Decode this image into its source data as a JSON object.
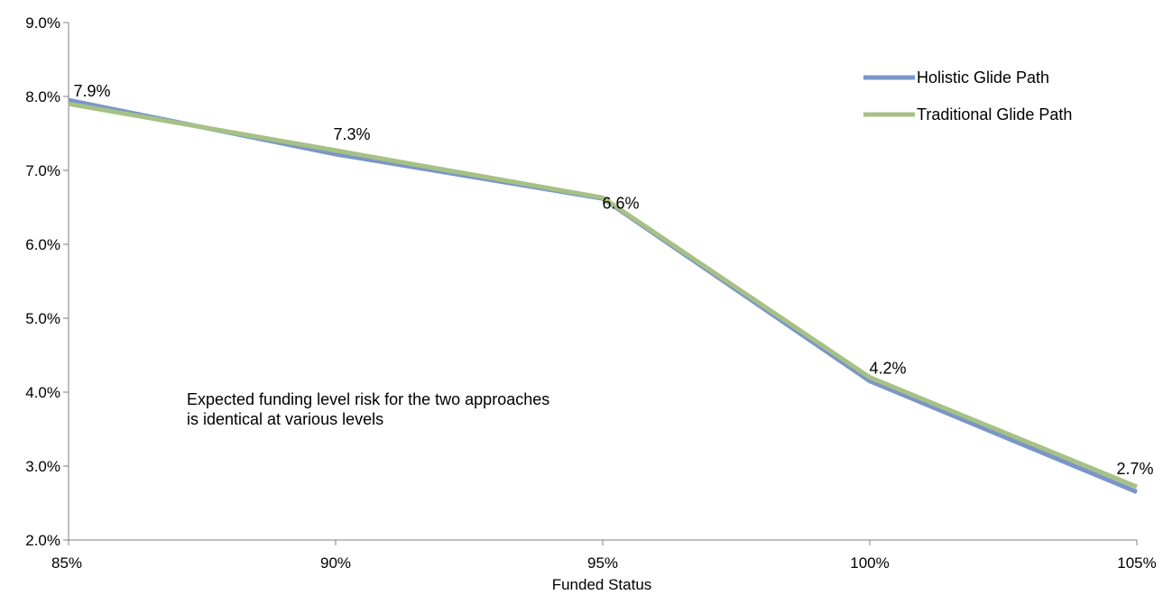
{
  "chart_data": {
    "type": "line",
    "x": [
      "85%",
      "90%",
      "95%",
      "100%",
      "105%"
    ],
    "xlabel": "Funded Status",
    "ylabel": "",
    "ylim": [
      2.0,
      9.0
    ],
    "yticks": [
      "2.0%",
      "3.0%",
      "4.0%",
      "5.0%",
      "6.0%",
      "7.0%",
      "8.0%",
      "9.0%"
    ],
    "grid": false,
    "legend_position": "top-right",
    "series": [
      {
        "name": "Holistic Glide Path",
        "color": "#7A96C8",
        "values": [
          7.95,
          7.22,
          6.62,
          4.15,
          2.65
        ]
      },
      {
        "name": "Traditional Glide Path",
        "color": "#A6C185",
        "values": [
          7.9,
          7.27,
          6.63,
          4.2,
          2.72
        ]
      }
    ],
    "data_labels": [
      "7.9%",
      "7.3%",
      "6.6%",
      "4.2%",
      "2.7%"
    ],
    "annotation": "Expected funding level risk for the two approaches is identical at various levels"
  }
}
